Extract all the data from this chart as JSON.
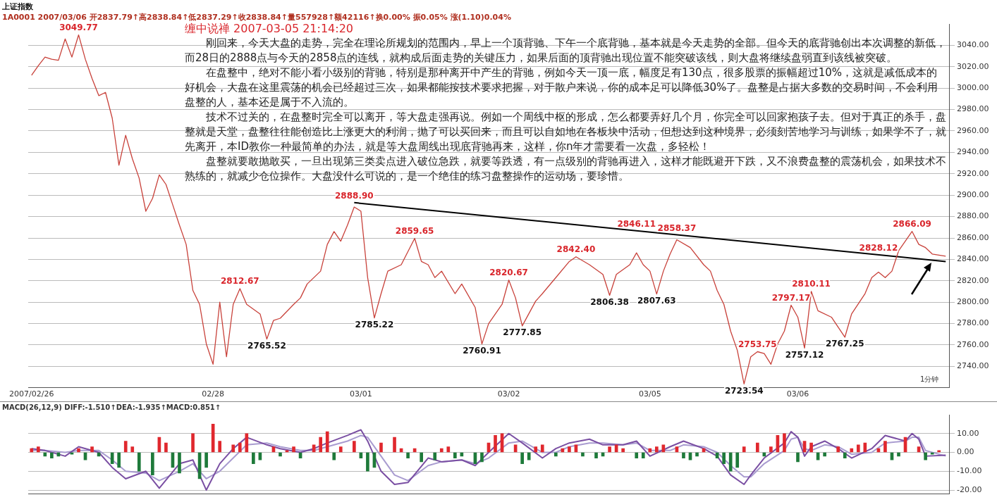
{
  "chart_data": [
    {
      "type": "line",
      "title": "上证指数",
      "subtitle": "1A0001 2007/03/06 开2837.79↑高2838.84↑低2837.29↑收2838.84↑量557928↑额42116↑换0.00% 振0.05% 涨(1.10)0.04%",
      "marker": "none",
      "grid": "y",
      "legend": false,
      "categories": [
        "2007/02/26",
        null,
        null,
        null,
        null,
        null,
        null,
        null,
        null,
        null,
        null,
        null,
        null,
        null,
        null,
        null,
        null,
        null,
        null,
        null,
        null,
        null,
        null,
        null,
        null,
        null,
        null,
        "02/28",
        null,
        null,
        null,
        null,
        null,
        null,
        null,
        null,
        null,
        null,
        null,
        null,
        null,
        null,
        null,
        null,
        null,
        null,
        null,
        null,
        null,
        "03/01",
        null,
        null,
        null,
        null,
        null,
        null,
        null,
        null,
        null,
        null,
        null,
        null,
        null,
        null,
        null,
        null,
        null,
        null,
        null,
        null,
        null,
        "03/02",
        null,
        null,
        null,
        null,
        null,
        null,
        null,
        null,
        null,
        null,
        null,
        null,
        null,
        null,
        null,
        null,
        null,
        null,
        null,
        null,
        "03/05",
        null,
        null,
        null,
        null,
        null,
        null,
        null,
        null,
        null,
        null,
        null,
        null,
        null,
        null,
        null,
        null,
        null,
        null,
        null,
        null,
        null,
        "03/06",
        null,
        null,
        null,
        null,
        null,
        null,
        null,
        null,
        null,
        null,
        null,
        null,
        null,
        null,
        null,
        null,
        null,
        null,
        null,
        null,
        null,
        null
      ],
      "ylim": [
        2720,
        3060
      ],
      "yticks": [
        {
          "value": 2740,
          "label": "2740.00"
        },
        {
          "value": 2760,
          "label": "2760.00"
        },
        {
          "value": 2780,
          "label": "2780.00"
        },
        {
          "value": 2800,
          "label": "2800.00"
        },
        {
          "value": 2820,
          "label": "2820.00"
        },
        {
          "value": 2840,
          "label": "2840.00"
        },
        {
          "value": 2860,
          "label": "2860.00"
        },
        {
          "value": 2880,
          "label": "2880.00"
        },
        {
          "value": 2900,
          "label": "2900.00"
        },
        {
          "value": 2920,
          "label": "2920.00"
        },
        {
          "value": 2940,
          "label": "2940.00"
        },
        {
          "value": 2960,
          "label": "2960.00"
        },
        {
          "value": 2980,
          "label": "2980.00"
        },
        {
          "value": 3000,
          "label": "3000.00"
        },
        {
          "value": 3020,
          "label": "3020.00"
        },
        {
          "value": 3040,
          "label": "3040.00"
        }
      ],
      "series": [
        {
          "color": "#c8413a",
          "values": [
            3012,
            3021,
            3029,
            3027,
            3026,
            3046,
            3029,
            3049.77,
            3027,
            3009,
            2993,
            2996,
            2972,
            2928,
            2956,
            2934,
            2916,
            2885,
            2897,
            2919,
            2910,
            2891,
            2872,
            2854,
            2811,
            2798,
            2761,
            2742,
            2800,
            2749,
            2798,
            2812.67,
            2798,
            null,
            2789,
            2765.52,
            2783,
            2785,
            null,
            2798,
            2804,
            2817,
            null,
            2829,
            2854,
            2866,
            2857,
            2872,
            2888.9,
            2885,
            2823,
            2785.22,
            2808,
            2829,
            null,
            2835,
            null,
            2859.65,
            2838,
            2835,
            2823,
            2829,
            null,
            2808,
            2817,
            null,
            2795,
            2760.91,
            2780,
            null,
            2798,
            2820.67,
            2804,
            2777.85,
            null,
            2801,
            2808,
            null,
            2823,
            null,
            2838,
            2842.4,
            null,
            2835,
            null,
            2826,
            2806.38,
            2826,
            null,
            2835,
            2846.11,
            2835,
            2829,
            2807.63,
            2829,
            2845,
            2858.37,
            null,
            2851,
            null,
            2835,
            2829,
            2811,
            2798,
            2773,
            2755,
            2723.54,
            2749,
            2753.75,
            2752,
            2742,
            2761,
            2773,
            2797.17,
            2786,
            2757.12,
            2810.11,
            2792,
            null,
            2786,
            null,
            2767.25,
            2789,
            null,
            2808,
            2823,
            2828.12,
            2823,
            2829,
            2848,
            null,
            2866.09,
            2854,
            2851,
            2845,
            null,
            2843
          ]
        },
        {
          "type": "line",
          "color": "#000000",
          "values": [
            null,
            null,
            null,
            null,
            null,
            null,
            null,
            null,
            null,
            null,
            null,
            null,
            null,
            null,
            null,
            null,
            null,
            null,
            null,
            null,
            null,
            null,
            null,
            null,
            null,
            null,
            null,
            null,
            null,
            null,
            null,
            null,
            null,
            null,
            null,
            null,
            null,
            null,
            null,
            null,
            null,
            null,
            null,
            null,
            null,
            null,
            null,
            null,
            2893,
            null,
            null,
            null,
            null,
            null,
            null,
            null,
            null,
            null,
            null,
            null,
            null,
            null,
            null,
            null,
            null,
            null,
            null,
            null,
            null,
            null,
            null,
            null,
            null,
            null,
            null,
            null,
            null,
            null,
            null,
            null,
            null,
            null,
            null,
            null,
            null,
            null,
            null,
            null,
            null,
            null,
            null,
            null,
            null,
            null,
            null,
            null,
            null,
            null,
            null,
            null,
            null,
            null,
            null,
            null,
            null,
            null,
            null,
            null,
            null,
            null,
            null,
            null,
            null,
            null,
            null,
            null,
            null,
            null,
            null,
            null,
            null,
            null,
            null,
            null,
            null,
            null,
            null,
            null,
            null,
            null,
            null,
            null,
            null,
            null,
            null,
            null,
            2838
          ]
        }
      ],
      "annotations": [
        "缠中说禅 2007-03-05 21:14:20",
        "刚回来，今天大盘的走势，完全在理论所规划的范围内，早上一个顶背驰、下午一个底背驰，基本就是今天走势的全部。但今天的底背驰创出本次调整的新低，而28日的2888点与今天的2858点的连线，就构成后面走势的关键压力，如果后面的顶背驰出现位置不能突破该线，则大盘将继续盘弱直到该线被突破。",
        "在盘整中，绝对不能小看小级别的背驰，特别是那种离开中产生的背驰，例如今天一顶一底，幅度足有130点，很多股票的振幅超过10%，这就是减低成本的好机会，大盘在这里震荡的机会已经超过三次，如果都能按技术要求把握，对于散户来说，你的成本足可以降低30%了。盘整是占据大多数的交易时间，不会利用盘整的人，基本还是属于不入流的。",
        "技术不过关的，在盘整时完全可以离开，等大盘走强再说。例如一个周线中枢的形成，怎么都要弄好几个月，你完全可以回家抱孩子去。但对于真正的杀手，盘整就是天堂，盘整往往能创造比上涨更大的利润，抛了可以买回来，而且可以自如地在各板块中活动，但想达到这种境界，必须刻苦地学习与训练，如果学不了，就先离开，本ID教你一种最简单的办法，就是等大盘周线出现底背驰再来，这样，你n年才需要看一次盘，多轻松！",
        "盘整就要敢抛敢买，一旦出现第三类卖点进入破位急跌，就要等跌透，有一点级别的背驰再进入，这样才能既避开下跌，又不浪费盘整的震荡机会，如果技术不熟练的，就减少仓位操作。大盘没什么可说的，是一个绝佳的练习盘整操作的运动场，要珍惜。",
        "1分钟",
        {
          "text": "3049.77",
          "y": 3049.77
        },
        {
          "text": "2812.67",
          "y": 2812.67
        },
        {
          "text": "2765.52",
          "y": 2765.52
        },
        {
          "text": "2888.90",
          "y": 2888.9
        },
        {
          "text": "2785.22",
          "y": 2785.22
        },
        {
          "text": "2859.65",
          "y": 2859.65
        },
        {
          "text": "2760.91",
          "y": 2760.91
        },
        {
          "text": "2820.67",
          "y": 2820.67
        },
        {
          "text": "2777.85",
          "y": 2777.85
        },
        {
          "text": "2842.40",
          "y": 2842.4
        },
        {
          "text": "2806.38",
          "y": 2806.38
        },
        {
          "text": "2846.11",
          "y": 2846.11
        },
        {
          "text": "2807.63",
          "y": 2807.63
        },
        {
          "text": "2858.37",
          "y": 2858.37
        },
        {
          "text": "2723.54",
          "y": 2723.54
        },
        {
          "text": "2753.75",
          "y": 2753.75
        },
        {
          "text": "2797.17",
          "y": 2797.17
        },
        {
          "text": "2757.12",
          "y": 2757.12
        },
        {
          "text": "2810.11",
          "y": 2810.11
        },
        {
          "text": "2767.25",
          "y": 2767.25
        },
        {
          "text": "2828.12",
          "y": 2828.12
        },
        {
          "text": "2866.09",
          "y": 2866.09
        }
      ]
    },
    {
      "type": "bar",
      "title": "MACD(26,12,9) DIFF:-1.510↑DEA:-1.935↑MACD:0.851↑",
      "grid": "y",
      "legend": false,
      "marker": "none",
      "tick_labels": "y",
      "categories": [
        null,
        null,
        null,
        null,
        null,
        null,
        null,
        null,
        null,
        null,
        null,
        null,
        null,
        null,
        null,
        null,
        null,
        null,
        null,
        null,
        null,
        null,
        null,
        null,
        null,
        null,
        null,
        null,
        null,
        null,
        null,
        null,
        null,
        null,
        null,
        null,
        null,
        null,
        null,
        null,
        null,
        null,
        null,
        null,
        null,
        null,
        null,
        null,
        null,
        null,
        null,
        null,
        null,
        null,
        null,
        null,
        null,
        null,
        null,
        null,
        null,
        null,
        null,
        null,
        null,
        null,
        null,
        null,
        null,
        null,
        null,
        null,
        null,
        null,
        null,
        null,
        null,
        null,
        null,
        null,
        null,
        null,
        null,
        null,
        null,
        null,
        null,
        null,
        null,
        null,
        null,
        null,
        null,
        null,
        null,
        null,
        null,
        null,
        null,
        null,
        null,
        null,
        null,
        null,
        null,
        null,
        null,
        null,
        null,
        null,
        null,
        null,
        null,
        null,
        null,
        null,
        null,
        null,
        null,
        null,
        null,
        null,
        null,
        null,
        null,
        null,
        null,
        null,
        null,
        null,
        null,
        null,
        null,
        null,
        null,
        null,
        null
      ],
      "ylim": [
        -22,
        20
      ],
      "yticks": [
        {
          "value": -20,
          "label": "-20.00"
        },
        {
          "value": -10,
          "label": "-10.00"
        },
        {
          "value": 0,
          "label": "0.00"
        },
        {
          "value": 10,
          "label": "10.00"
        }
      ],
      "series": [
        {
          "colors": [
            "#e0282e",
            "#e0282e",
            "#1e7a3a",
            "#1e7a3a",
            "#1e7a3a",
            "#e0282e",
            "#1e7a3a",
            "#e0282e",
            "#1e7a3a",
            "#e0282e",
            "#1e7a3a",
            "#e0282e",
            "#1e7a3a",
            "#1e7a3a",
            "#e0282e",
            "#e0282e",
            "#1e7a3a",
            "#e0282e",
            "#1e7a3a",
            "#e0282e",
            "#e0282e",
            "#1e7a3a",
            "#1e7a3a",
            "#e0282e",
            "#e0282e",
            "#1e7a3a",
            "#1e7a3a",
            "#e0282e",
            "#e0282e",
            "#e0282e",
            "#e0282e",
            "#e0282e",
            "#e0282e",
            "#1e7a3a",
            "#1e7a3a",
            "#e0282e",
            "#e0282e",
            "#1e7a3a",
            "#e0282e",
            "#e0282e",
            "#1e7a3a",
            "#e0282e",
            "#e0282e",
            "#e0282e",
            "#e0282e",
            "#1e7a3a",
            "#e0282e",
            "#e0282e",
            "#e0282e",
            "#1e7a3a",
            "#1e7a3a",
            "#1e7a3a",
            "#e0282e",
            "#e0282e",
            "#e0282e",
            "#e0282e",
            "#1e7a3a",
            "#e0282e",
            "#1e7a3a",
            "#e0282e",
            "#1e7a3a",
            "#e0282e",
            "#e0282e",
            "#1e7a3a",
            "#1e7a3a",
            "#e0282e",
            "#1e7a3a",
            "#1e7a3a",
            "#e0282e",
            "#e0282e",
            "#e0282e",
            "#e0282e",
            "#e0282e",
            "#1e7a3a",
            "#1e7a3a",
            "#e0282e",
            "#e0282e",
            "#e0282e",
            "#1e7a3a",
            "#e0282e",
            "#e0282e",
            "#e0282e",
            "#1e7a3a",
            "#e0282e",
            "#1e7a3a",
            "#1e7a3a",
            "#e0282e",
            "#e0282e",
            "#e0282e",
            "#e0282e",
            "#1e7a3a",
            "#1e7a3a",
            "#e0282e",
            "#e0282e",
            "#e0282e",
            "#e0282e",
            "#e0282e",
            "#1e7a3a",
            "#1e7a3a",
            "#1e7a3a",
            "#e0282e",
            "#e0282e",
            "#1e7a3a",
            "#1e7a3a",
            "#1e7a3a",
            "#1e7a3a",
            "#e0282e",
            "#e0282e",
            "#e0282e",
            "#1e7a3a",
            "#e0282e",
            "#e0282e",
            "#e0282e",
            "#e0282e",
            "#1e7a3a",
            "#e0282e",
            "#e0282e",
            "#1e7a3a",
            "#1e7a3a",
            "#e0282e",
            "#e0282e",
            "#1e7a3a",
            "#e0282e",
            "#e0282e",
            "#e0282e",
            "#e0282e",
            "#e0282e",
            "#e0282e",
            "#1e7a3a",
            "#1e7a3a",
            "#e0282e",
            "#e0282e",
            "#e0282e",
            "#1e7a3a",
            "#1e7a3a",
            "#e0282e",
            "#e0282e"
          ],
          "values": [
            2,
            3,
            -2,
            -3,
            -2,
            null,
            -1,
            2,
            -4,
            3,
            -2,
            null,
            -6,
            -8,
            6,
            3,
            -10,
            null,
            -12,
            8,
            5,
            -8,
            -11,
            null,
            10,
            -14,
            -8,
            15,
            6,
            null,
            4,
            5,
            10,
            -6,
            -4,
            null,
            3,
            -2,
            1,
            3,
            -3,
            null,
            4,
            8,
            11,
            -4,
            3,
            null,
            6,
            -3,
            -10,
            -8,
            5,
            null,
            8,
            2,
            -3,
            2,
            -5,
            null,
            -4,
            2,
            3,
            -3,
            -2,
            null,
            -6,
            -5,
            5,
            9,
            10,
            null,
            4,
            -6,
            -4,
            3,
            4,
            null,
            -2,
            2,
            3,
            4,
            -2,
            null,
            -3,
            -2,
            3,
            4,
            2,
            null,
            -3,
            -3,
            2,
            3,
            4,
            null,
            3,
            -3,
            -4,
            -2,
            2,
            null,
            -3,
            -6,
            -10,
            -8,
            3,
            null,
            5,
            -2,
            3,
            9,
            10,
            null,
            -5,
            6,
            5,
            -4,
            -2,
            null,
            3,
            -3,
            2,
            4,
            5,
            null,
            2,
            6,
            -4,
            -2,
            8,
            null,
            3,
            -4,
            -1,
            1,
            null
          ]
        },
        {
          "type": "line",
          "color": "#7a4fa3",
          "values": [
            2,
            null,
            1,
            null,
            null,
            -2,
            null,
            3,
            null,
            null,
            0,
            null,
            -8,
            null,
            -14,
            null,
            null,
            -10,
            null,
            -19,
            null,
            null,
            -6,
            null,
            -4,
            null,
            -20,
            null,
            -6,
            null,
            2,
            null,
            8,
            null,
            null,
            4,
            null,
            2,
            null,
            null,
            0,
            null,
            2,
            null,
            5,
            null,
            null,
            9,
            null,
            12,
            6,
            null,
            -10,
            null,
            -17,
            null,
            -16,
            null,
            null,
            -3,
            null,
            -5,
            null,
            null,
            -4,
            null,
            -7,
            null,
            0,
            null,
            null,
            10,
            null,
            5,
            null,
            null,
            -3,
            null,
            2,
            null,
            5,
            null,
            null,
            7,
            null,
            4,
            null,
            null,
            4,
            null,
            6,
            null,
            -2,
            null,
            null,
            3,
            null,
            6,
            null,
            null,
            2,
            null,
            -2,
            null,
            -12,
            null,
            -17,
            -12,
            null,
            -3,
            null,
            null,
            5,
            11,
            8,
            -2,
            3,
            null,
            6,
            null,
            2,
            null,
            -3,
            null,
            null,
            2,
            null,
            9,
            null,
            null,
            6,
            10,
            7,
            -2,
            null,
            null,
            -1.5
          ]
        },
        {
          "type": "line",
          "color": "#a99cd0",
          "values": [
            1,
            null,
            1,
            null,
            null,
            0,
            null,
            1,
            null,
            null,
            1,
            null,
            -4,
            null,
            -10,
            null,
            null,
            -11,
            null,
            -15,
            null,
            null,
            -10,
            null,
            -6,
            null,
            -14,
            null,
            -10,
            null,
            -3,
            null,
            4,
            null,
            null,
            5,
            null,
            3,
            null,
            null,
            1,
            null,
            1,
            null,
            3,
            null,
            null,
            6,
            null,
            9,
            8,
            null,
            -2,
            null,
            -12,
            null,
            -15,
            null,
            null,
            -7,
            null,
            -5,
            null,
            null,
            -4,
            null,
            -6,
            null,
            -3,
            null,
            null,
            5,
            null,
            6,
            null,
            null,
            0,
            null,
            0,
            null,
            3,
            null,
            null,
            5,
            null,
            5,
            null,
            null,
            4,
            null,
            5,
            null,
            1,
            null,
            null,
            1,
            null,
            4,
            null,
            null,
            3,
            null,
            0,
            null,
            -7,
            null,
            -13,
            -13,
            null,
            -6,
            null,
            null,
            1,
            7,
            8,
            2,
            1,
            null,
            4,
            null,
            3,
            null,
            -1,
            null,
            null,
            0,
            null,
            5,
            null,
            null,
            6,
            8,
            8,
            1,
            null,
            null,
            -1.9
          ]
        }
      ]
    }
  ]
}
